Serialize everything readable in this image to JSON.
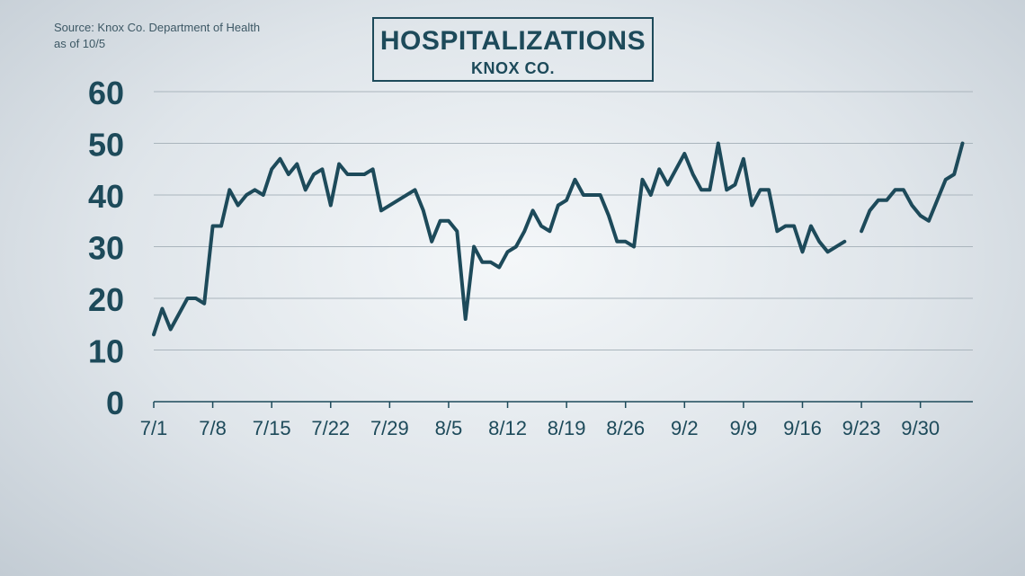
{
  "header": {
    "source_line1": "Source: Knox Co. Department of Health",
    "source_line2": "as of 10/5",
    "title": "HOSPITALIZATIONS",
    "subtitle": "KNOX CO."
  },
  "colors": {
    "line": "#1d4a5a",
    "grid": "#aab5bd",
    "axis_text": "#1d4a5a"
  },
  "chart_data": {
    "type": "line",
    "title": "HOSPITALIZATIONS",
    "subtitle": "KNOX CO.",
    "xlabel": "",
    "ylabel": "",
    "ylim": [
      0,
      60
    ],
    "yticks": [
      0,
      10,
      20,
      30,
      40,
      50,
      60
    ],
    "xticks": [
      "7/1",
      "7/8",
      "7/15",
      "7/22",
      "7/29",
      "8/5",
      "8/12",
      "8/19",
      "8/26",
      "9/2",
      "9/9",
      "9/16",
      "9/23",
      "9/30"
    ],
    "grid": true,
    "legend": "none",
    "series": [
      {
        "values": [
          {
            "x": "7/1",
            "y": 13
          },
          {
            "x": "7/2",
            "y": 18
          },
          {
            "x": "7/3",
            "y": 14
          },
          {
            "x": "7/5",
            "y": 20
          },
          {
            "x": "7/6",
            "y": 20
          },
          {
            "x": "7/7",
            "y": 19
          },
          {
            "x": "7/8",
            "y": 34
          },
          {
            "x": "7/9",
            "y": 34
          },
          {
            "x": "7/10",
            "y": 41
          },
          {
            "x": "7/11",
            "y": 38
          },
          {
            "x": "7/12",
            "y": 40
          },
          {
            "x": "7/13",
            "y": 41
          },
          {
            "x": "7/14",
            "y": 40
          },
          {
            "x": "7/15",
            "y": 45
          },
          {
            "x": "7/16",
            "y": 47
          },
          {
            "x": "7/17",
            "y": 44
          },
          {
            "x": "7/18",
            "y": 46
          },
          {
            "x": "7/19",
            "y": 41
          },
          {
            "x": "7/20",
            "y": 44
          },
          {
            "x": "7/21",
            "y": 45
          },
          {
            "x": "7/22",
            "y": 38
          },
          {
            "x": "7/23",
            "y": 46
          },
          {
            "x": "7/24",
            "y": 44
          },
          {
            "x": "7/25",
            "y": 44
          },
          {
            "x": "7/26",
            "y": 44
          },
          {
            "x": "7/27",
            "y": 45
          },
          {
            "x": "7/28",
            "y": 37
          },
          {
            "x": "8/1",
            "y": 41
          },
          {
            "x": "8/2",
            "y": 37
          },
          {
            "x": "8/3",
            "y": 31
          },
          {
            "x": "8/4",
            "y": 35
          },
          {
            "x": "8/5",
            "y": 35
          },
          {
            "x": "8/6",
            "y": 33
          },
          {
            "x": "8/7",
            "y": 16
          },
          {
            "x": "8/8",
            "y": 30
          },
          {
            "x": "8/9",
            "y": 27
          },
          {
            "x": "8/10",
            "y": 27
          },
          {
            "x": "8/11",
            "y": 26
          },
          {
            "x": "8/12",
            "y": 29
          },
          {
            "x": "8/13",
            "y": 30
          },
          {
            "x": "8/14",
            "y": 33
          },
          {
            "x": "8/15",
            "y": 37
          },
          {
            "x": "8/16",
            "y": 34
          },
          {
            "x": "8/17",
            "y": 33
          },
          {
            "x": "8/18",
            "y": 38
          },
          {
            "x": "8/19",
            "y": 39
          },
          {
            "x": "8/20",
            "y": 43
          },
          {
            "x": "8/21",
            "y": 40
          },
          {
            "x": "8/22",
            "y": 40
          },
          {
            "x": "8/23",
            "y": 40
          },
          {
            "x": "8/24",
            "y": 36
          },
          {
            "x": "8/25",
            "y": 31
          },
          {
            "x": "8/26",
            "y": 31
          },
          {
            "x": "8/27",
            "y": 30
          },
          {
            "x": "8/28",
            "y": 43
          },
          {
            "x": "8/29",
            "y": 40
          },
          {
            "x": "8/30",
            "y": 45
          },
          {
            "x": "8/31",
            "y": 42
          },
          {
            "x": "9/1",
            "y": 45
          },
          {
            "x": "9/2",
            "y": 48
          },
          {
            "x": "9/3",
            "y": 44
          },
          {
            "x": "9/4",
            "y": 41
          },
          {
            "x": "9/5",
            "y": 41
          },
          {
            "x": "9/6",
            "y": 50
          },
          {
            "x": "9/7",
            "y": 41
          },
          {
            "x": "9/8",
            "y": 42
          },
          {
            "x": "9/9",
            "y": 47
          },
          {
            "x": "9/10",
            "y": 38
          },
          {
            "x": "9/11",
            "y": 41
          },
          {
            "x": "9/12",
            "y": 41
          },
          {
            "x": "9/13",
            "y": 33
          },
          {
            "x": "9/14",
            "y": 34
          },
          {
            "x": "9/15",
            "y": 34
          },
          {
            "x": "9/16",
            "y": 29
          },
          {
            "x": "9/17",
            "y": 34
          },
          {
            "x": "9/18",
            "y": 31
          },
          {
            "x": "9/19",
            "y": 29
          },
          {
            "x": "9/21",
            "y": 31
          }
        ]
      },
      {
        "values": [
          {
            "x": "9/23",
            "y": 33
          },
          {
            "x": "9/24",
            "y": 37
          },
          {
            "x": "9/25",
            "y": 39
          },
          {
            "x": "9/26",
            "y": 39
          },
          {
            "x": "9/27",
            "y": 41
          },
          {
            "x": "9/28",
            "y": 41
          },
          {
            "x": "9/29",
            "y": 38
          },
          {
            "x": "9/30",
            "y": 36
          },
          {
            "x": "10/1",
            "y": 35
          },
          {
            "x": "10/2",
            "y": 39
          },
          {
            "x": "10/3",
            "y": 43
          },
          {
            "x": "10/4",
            "y": 44
          },
          {
            "x": "10/5",
            "y": 50
          }
        ]
      }
    ]
  }
}
